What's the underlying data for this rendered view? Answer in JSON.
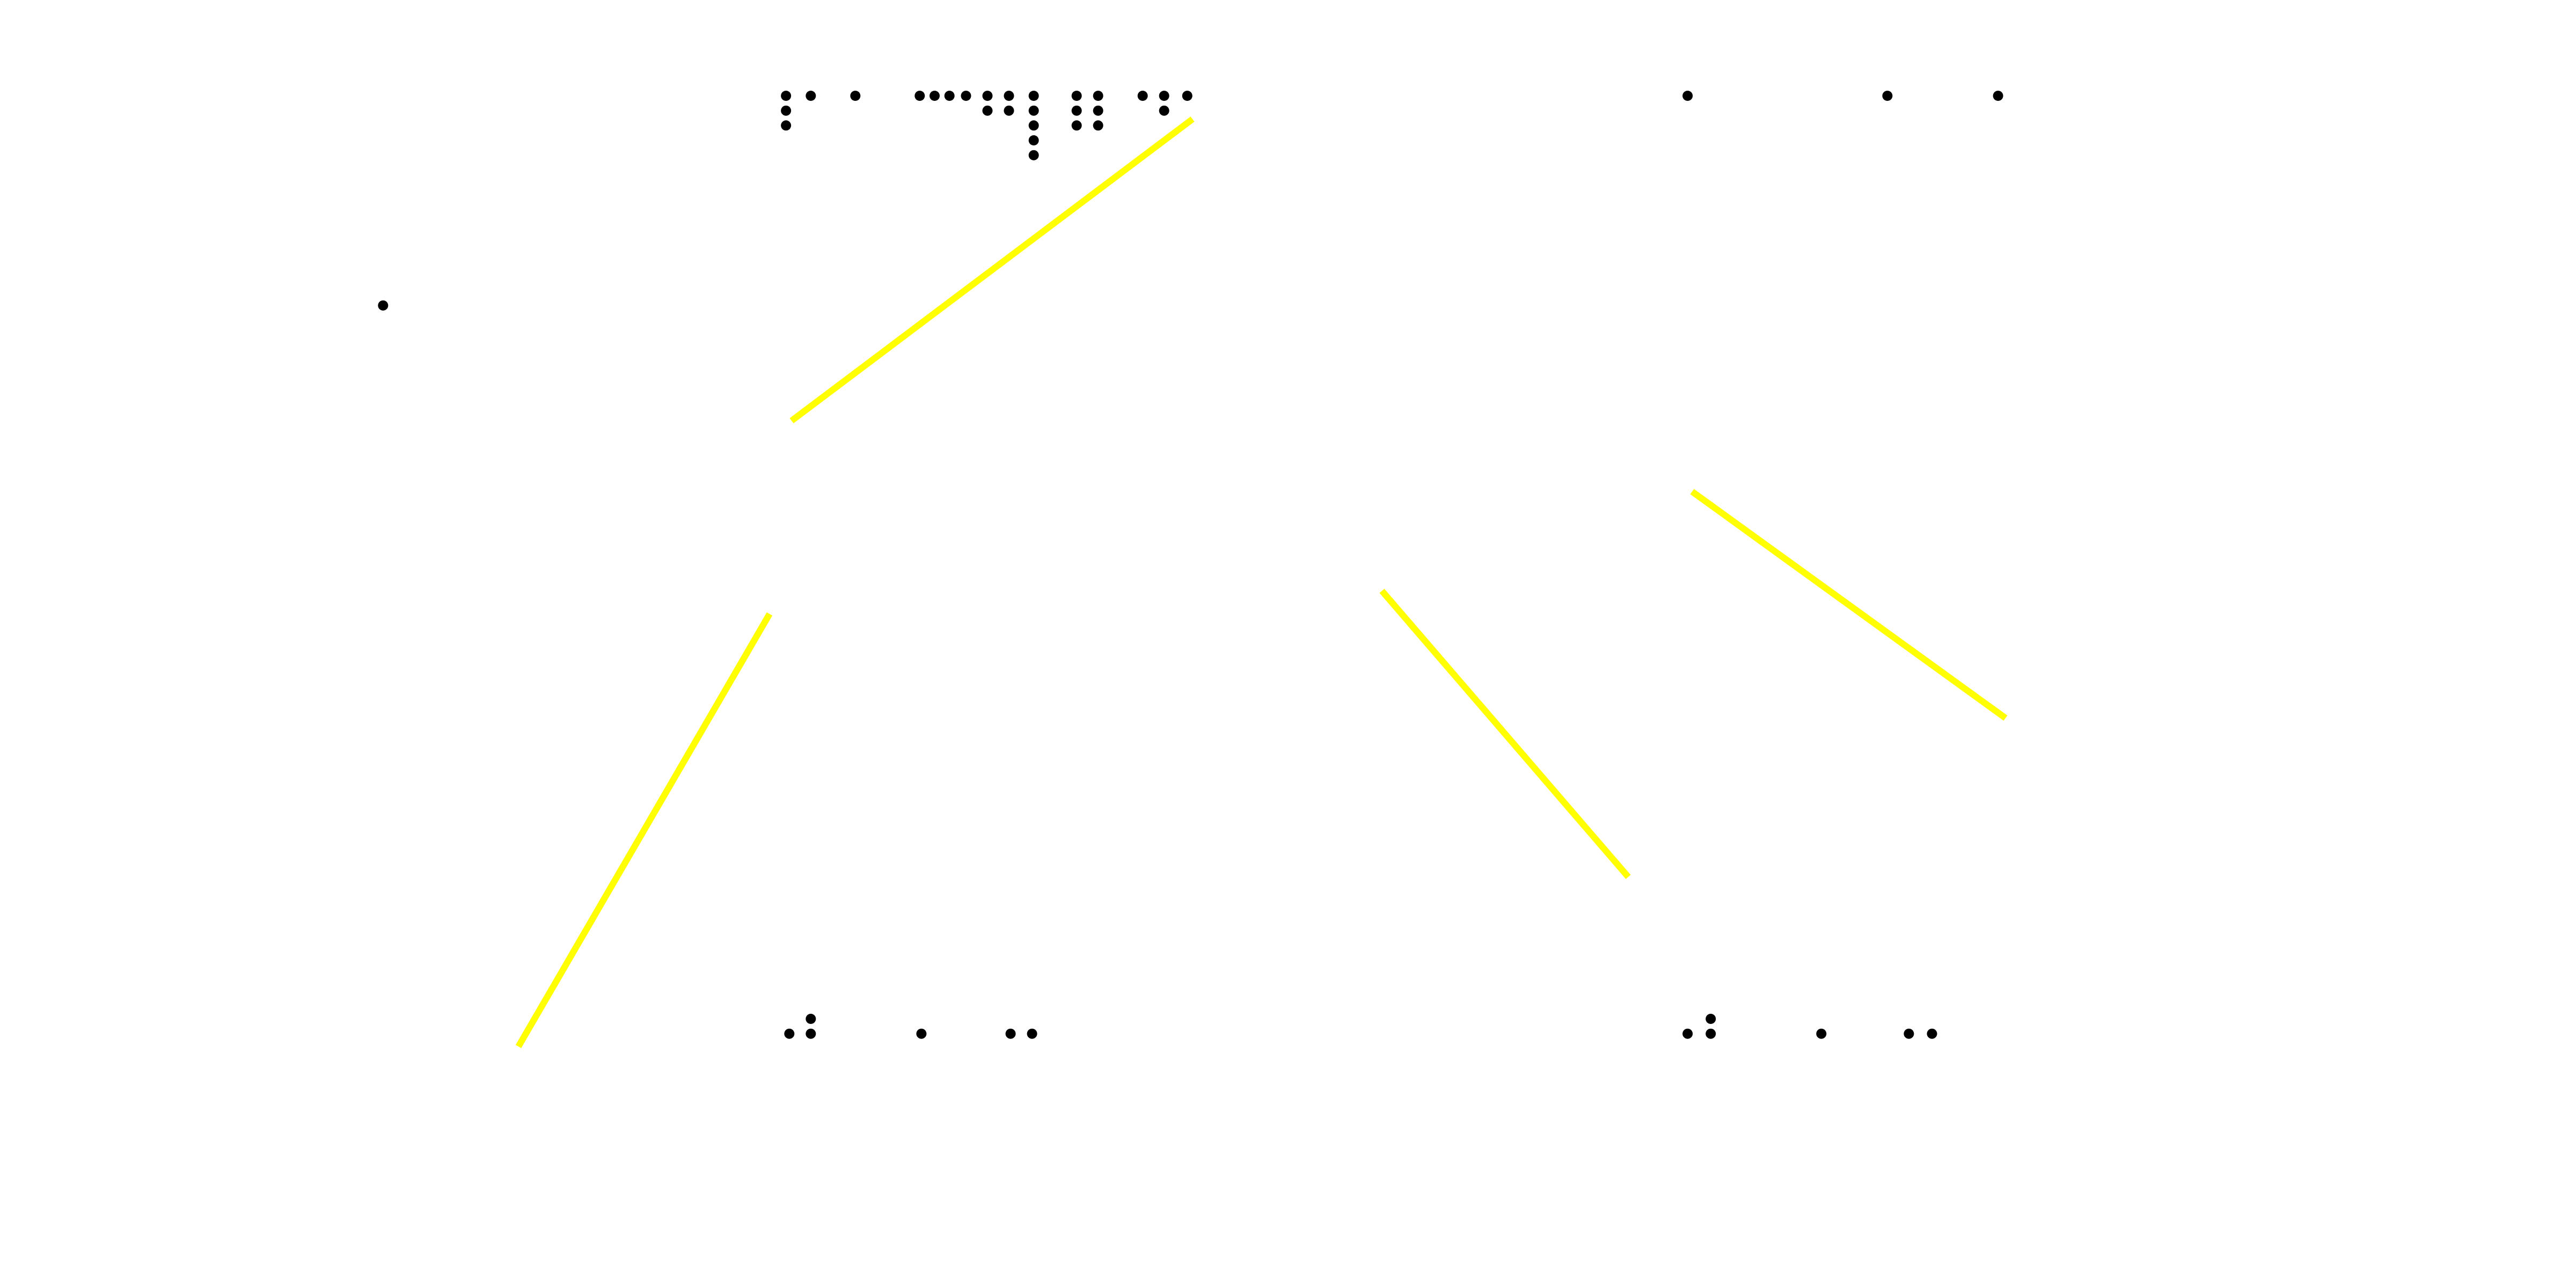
{
  "page": {
    "background": "#ffffff",
    "dot_color": "#000000",
    "line_color": "#ffff00"
  },
  "braille_labels": [
    {
      "id": "top-left",
      "cells": [
        "⠏",
        "⠁",
        "⠒⠒⠗",
        "⠿",
        "⠶"
      ]
    },
    {
      "id": "top-right",
      "cells": [
        "⠁",
        "⠁",
        "⠁"
      ]
    },
    {
      "id": "side-left",
      "cells": [
        "⠁"
      ]
    },
    {
      "id": "bottom-left",
      "cells": [
        "⠱",
        "⠁",
        "⠉"
      ]
    },
    {
      "id": "bottom-right",
      "cells": [
        "⠱",
        "⠁",
        "⠉"
      ]
    }
  ],
  "connector_lines": [
    {
      "id": "connector-1"
    },
    {
      "id": "connector-2"
    },
    {
      "id": "connector-3"
    },
    {
      "id": "connector-4"
    }
  ]
}
